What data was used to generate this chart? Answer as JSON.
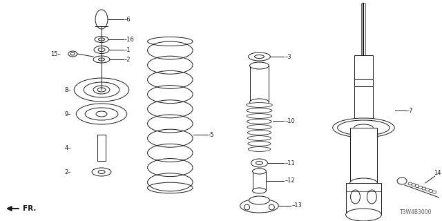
{
  "bg_color": "#ffffff",
  "line_color": "#1a1a1a",
  "part_code": "T3W4B3000",
  "fr_label": "FR.",
  "fig_w": 6.4,
  "fig_h": 3.2,
  "dpi": 100,
  "label_fontsize": 6.0,
  "code_fontsize": 5.5
}
